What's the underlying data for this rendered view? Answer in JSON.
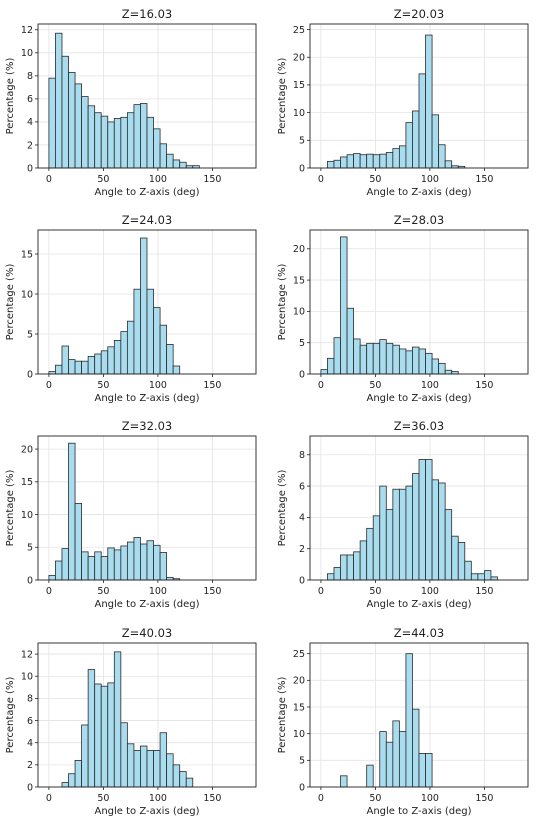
{
  "chart_data": [
    {
      "type": "bar",
      "title": "Z=16.03",
      "xlabel": "Angle to Z-axis (deg)",
      "ylabel": "Percentage (%)",
      "xlim": [
        -10,
        190
      ],
      "ylim": [
        0,
        12.5
      ],
      "xticks": [
        0,
        50,
        100,
        150
      ],
      "yticks": [
        0,
        2,
        4,
        6,
        8,
        10,
        12
      ],
      "bin_width": 6,
      "bin_start": 0,
      "values": [
        7.8,
        11.7,
        9.7,
        8.3,
        7.3,
        6.2,
        5.4,
        4.8,
        4.5,
        4.0,
        4.3,
        4.4,
        4.8,
        5.5,
        5.6,
        4.4,
        3.4,
        2.1,
        1.2,
        0.7,
        0.5,
        0.2,
        0.2,
        0,
        0,
        0,
        0,
        0,
        0,
        0
      ]
    },
    {
      "type": "bar",
      "title": "Z=20.03",
      "xlabel": "Angle to Z-axis (deg)",
      "ylabel": "Percentage (%)",
      "xlim": [
        -10,
        190
      ],
      "ylim": [
        0,
        26
      ],
      "xticks": [
        0,
        50,
        100,
        150
      ],
      "yticks": [
        0,
        5,
        10,
        15,
        20,
        25
      ],
      "bin_width": 6,
      "bin_start": 0,
      "values": [
        0,
        1.2,
        1.4,
        2.0,
        2.4,
        2.6,
        2.4,
        2.5,
        2.4,
        2.5,
        2.8,
        3.5,
        4.0,
        8.2,
        10.3,
        17.0,
        24.0,
        9.6,
        4.2,
        1.3,
        0.4,
        0.3,
        0,
        0,
        0,
        0,
        0,
        0,
        0,
        0
      ]
    },
    {
      "type": "bar",
      "title": "Z=24.03",
      "xlabel": "Angle to Z-axis (deg)",
      "ylabel": "Percentage (%)",
      "xlim": [
        -10,
        190
      ],
      "ylim": [
        0,
        18
      ],
      "xticks": [
        0,
        50,
        100,
        150
      ],
      "yticks": [
        0,
        5,
        10,
        15
      ],
      "bin_width": 6,
      "bin_start": 0,
      "values": [
        0.3,
        1.1,
        3.5,
        1.8,
        1.6,
        1.6,
        2.2,
        2.5,
        2.9,
        3.4,
        4.2,
        5.3,
        6.6,
        10.6,
        17.0,
        10.6,
        8.3,
        6.1,
        3.7,
        1.0,
        0,
        0,
        0,
        0,
        0,
        0,
        0,
        0,
        0,
        0
      ]
    },
    {
      "type": "bar",
      "title": "Z=28.03",
      "xlabel": "Angle to Z-axis (deg)",
      "ylabel": "Percentage (%)",
      "xlim": [
        -10,
        190
      ],
      "ylim": [
        0,
        23
      ],
      "xticks": [
        0,
        50,
        100,
        150
      ],
      "yticks": [
        0,
        5,
        10,
        15,
        20
      ],
      "bin_width": 6,
      "bin_start": 0,
      "values": [
        0.7,
        2.5,
        5.8,
        21.9,
        10.5,
        5.6,
        4.6,
        4.9,
        4.9,
        5.5,
        4.9,
        4.6,
        4.0,
        3.7,
        4.3,
        4.0,
        3.3,
        2.4,
        1.7,
        0.6,
        0.4,
        0,
        0,
        0,
        0,
        0,
        0,
        0,
        0,
        0
      ]
    },
    {
      "type": "bar",
      "title": "Z=32.03",
      "xlabel": "Angle to Z-axis (deg)",
      "ylabel": "Percentage (%)",
      "xlim": [
        -10,
        190
      ],
      "ylim": [
        0,
        22
      ],
      "xticks": [
        0,
        50,
        100,
        150
      ],
      "yticks": [
        0,
        5,
        10,
        15,
        20
      ],
      "bin_width": 6,
      "bin_start": 0,
      "values": [
        0.7,
        2.9,
        4.8,
        20.9,
        11.7,
        4.3,
        3.6,
        4.3,
        3.6,
        4.9,
        4.6,
        5.2,
        5.8,
        6.5,
        5.5,
        6.0,
        5.3,
        4.2,
        0.4,
        0.2,
        0,
        0,
        0,
        0,
        0,
        0,
        0,
        0,
        0,
        0
      ]
    },
    {
      "type": "bar",
      "title": "Z=36.03",
      "xlabel": "Angle to Z-axis (deg)",
      "ylabel": "Percentage (%)",
      "xlim": [
        -10,
        190
      ],
      "ylim": [
        0,
        9.2
      ],
      "xticks": [
        0,
        50,
        100,
        150
      ],
      "yticks": [
        0,
        2,
        4,
        6,
        8
      ],
      "bin_width": 6,
      "bin_start": 0,
      "values": [
        0,
        0.4,
        0.8,
        1.6,
        1.6,
        1.8,
        2.5,
        3.3,
        4.1,
        6.0,
        4.5,
        5.8,
        5.8,
        6.0,
        6.8,
        7.7,
        7.7,
        6.4,
        6.2,
        4.5,
        2.8,
        2.4,
        1.2,
        0.4,
        0.4,
        0.6,
        0.2,
        0,
        0,
        0
      ]
    },
    {
      "type": "bar",
      "title": "Z=40.03",
      "xlabel": "Angle to Z-axis (deg)",
      "ylabel": "Percentage (%)",
      "xlim": [
        -10,
        190
      ],
      "ylim": [
        0,
        13
      ],
      "xticks": [
        0,
        50,
        100,
        150
      ],
      "yticks": [
        0,
        2,
        4,
        6,
        8,
        10,
        12
      ],
      "bin_width": 6,
      "bin_start": 0,
      "values": [
        0,
        0,
        0.4,
        1.2,
        2.4,
        5.6,
        10.6,
        9.3,
        9.1,
        9.4,
        12.2,
        5.8,
        3.9,
        3.3,
        3.7,
        3.3,
        3.3,
        4.9,
        3.0,
        2.0,
        1.4,
        0.8,
        0,
        0,
        0,
        0,
        0,
        0,
        0,
        0
      ]
    },
    {
      "type": "bar",
      "title": "Z=44.03",
      "xlabel": "Angle to Z-axis (deg)",
      "ylabel": "Percentage (%)",
      "xlim": [
        -10,
        190
      ],
      "ylim": [
        0,
        27
      ],
      "xticks": [
        0,
        50,
        100,
        150
      ],
      "yticks": [
        0,
        5,
        10,
        15,
        20,
        25
      ],
      "bin_width": 6,
      "bin_start": 0,
      "values": [
        0,
        0,
        0,
        2.1,
        0,
        0,
        0,
        4.1,
        0,
        10.4,
        8.4,
        12.4,
        10.4,
        25.0,
        14.6,
        6.3,
        6.3,
        0,
        0,
        0,
        0,
        0,
        0,
        0,
        0,
        0,
        0,
        0,
        0,
        0
      ]
    }
  ],
  "style": {
    "bar_fill": "#a9dcee",
    "bar_stroke": "#2b2b2b",
    "grid_color": "#e3e3e3",
    "axis_color": "#222222"
  }
}
